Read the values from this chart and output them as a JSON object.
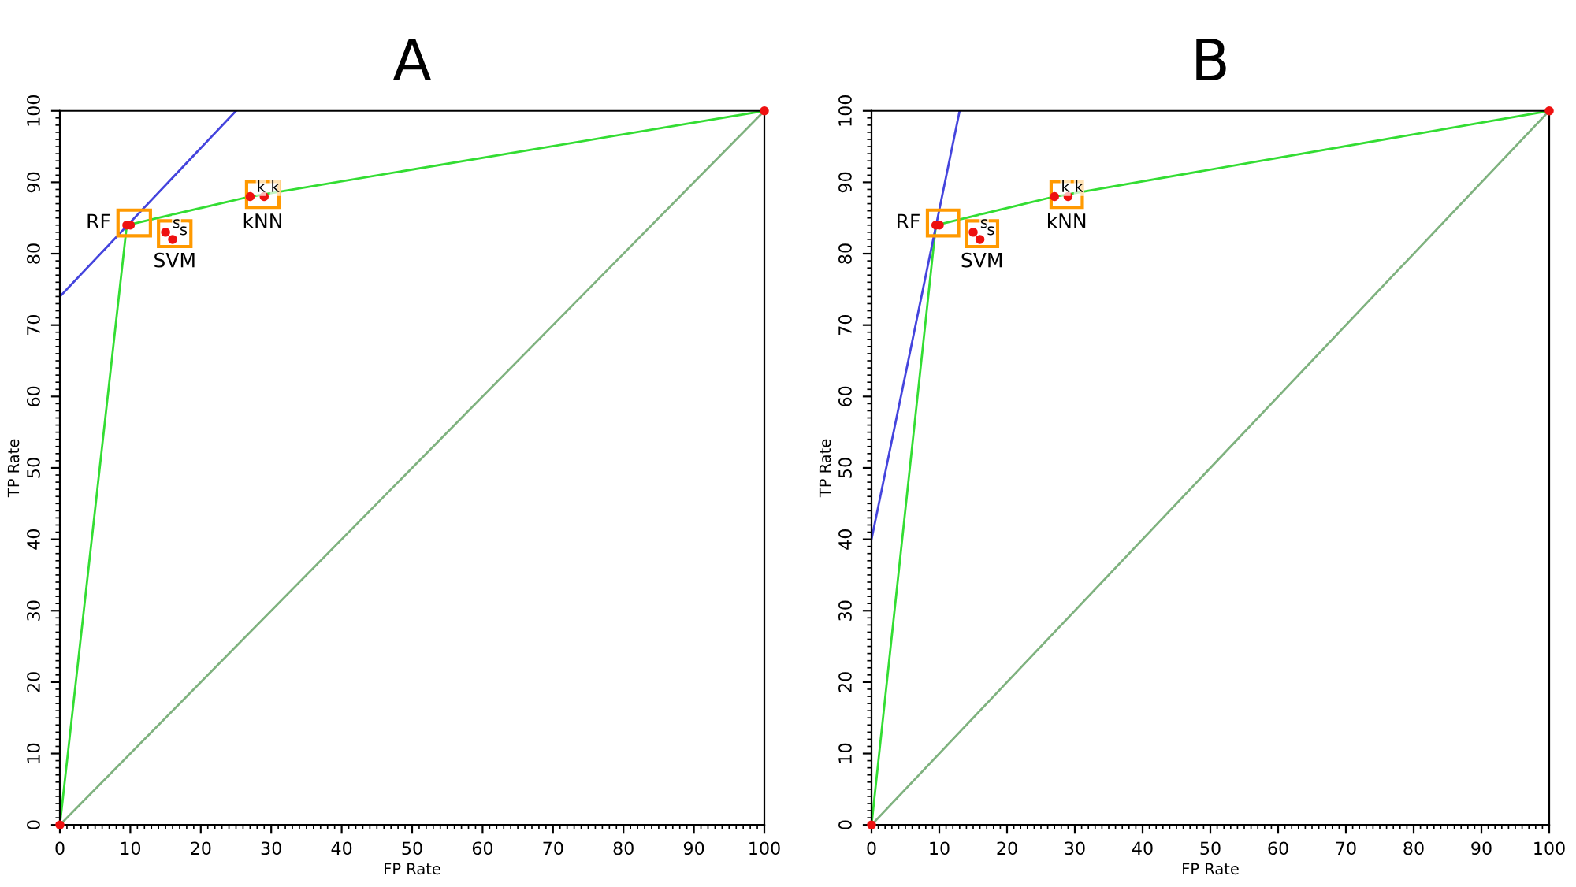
{
  "chart_data": [
    {
      "type": "line",
      "title": "A",
      "xlabel": "FP Rate",
      "ylabel": "TP Rate",
      "xlim": [
        0,
        100
      ],
      "ylim": [
        0,
        100
      ],
      "xticks": [
        0,
        10,
        20,
        30,
        40,
        50,
        60,
        70,
        80,
        90,
        100
      ],
      "yticks": [
        0,
        10,
        20,
        30,
        40,
        50,
        60,
        70,
        80,
        90,
        100
      ],
      "grid": false,
      "legend": false,
      "series": [
        {
          "color": "#7fb27f",
          "x": [
            0,
            100
          ],
          "values": [
            0,
            100
          ]
        },
        {
          "color": "#33dd33",
          "x": [
            0,
            9.5,
            27,
            100
          ],
          "values": [
            0,
            84,
            88,
            100
          ]
        },
        {
          "color": "#4444dd",
          "x": [
            0,
            25
          ],
          "values": [
            74,
            100
          ]
        },
        {
          "type": "scatter",
          "color": "#ee1111",
          "x": [
            0,
            9.5,
            10,
            15,
            16,
            27,
            29,
            100
          ],
          "values": [
            0,
            84,
            84,
            83,
            82,
            88,
            88,
            100
          ]
        }
      ],
      "annotations": [
        "RF",
        "SVM",
        "kNN",
        {
          "text": "s",
          "x": 15,
          "y": 83
        },
        {
          "text": "s",
          "x": 16,
          "y": 82
        },
        {
          "text": "k",
          "x": 27,
          "y": 88
        },
        {
          "text": "k",
          "x": 29,
          "y": 88
        }
      ]
    },
    {
      "type": "line",
      "title": "B",
      "xlabel": "FP Rate",
      "ylabel": "TP Rate",
      "xlim": [
        0,
        100
      ],
      "ylim": [
        0,
        100
      ],
      "xticks": [
        0,
        10,
        20,
        30,
        40,
        50,
        60,
        70,
        80,
        90,
        100
      ],
      "yticks": [
        0,
        10,
        20,
        30,
        40,
        50,
        60,
        70,
        80,
        90,
        100
      ],
      "grid": false,
      "legend": false,
      "series": [
        {
          "color": "#7fb27f",
          "x": [
            0,
            100
          ],
          "values": [
            0,
            100
          ]
        },
        {
          "color": "#33dd33",
          "x": [
            0,
            9.5,
            27,
            100
          ],
          "values": [
            0,
            84,
            88,
            100
          ]
        },
        {
          "color": "#4444dd",
          "x": [
            0,
            13
          ],
          "values": [
            40,
            100
          ]
        },
        {
          "type": "scatter",
          "color": "#ee1111",
          "x": [
            0,
            9.5,
            10,
            15,
            16,
            27,
            29,
            100
          ],
          "values": [
            0,
            84,
            84,
            83,
            82,
            88,
            88,
            100
          ]
        }
      ],
      "annotations": [
        "RF",
        "SVM",
        "kNN",
        {
          "text": "s",
          "x": 15,
          "y": 83
        },
        {
          "text": "s",
          "x": 16,
          "y": 82
        },
        {
          "text": "k",
          "x": 27,
          "y": 88
        },
        {
          "text": "k",
          "x": 29,
          "y": 88
        }
      ]
    }
  ]
}
